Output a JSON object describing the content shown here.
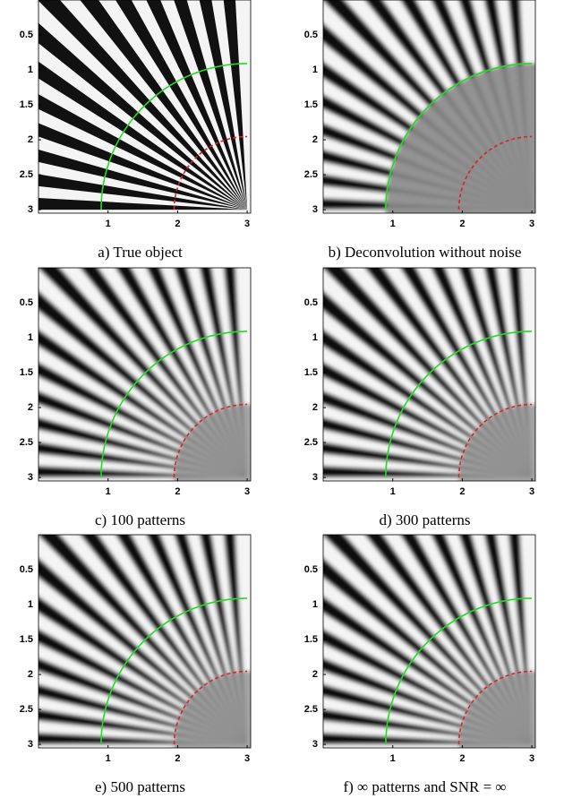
{
  "figure": {
    "xlim": [
      0,
      3.05
    ],
    "ylim": [
      0,
      3.05
    ],
    "xticks": [
      1,
      2,
      3
    ],
    "yticks": [
      0.5,
      1,
      1.5,
      2,
      2.5,
      3
    ],
    "arcs": [
      {
        "radius": 2.1,
        "color": "#22dd22",
        "dashed": false
      },
      {
        "radius": 1.05,
        "color": "#dd2222",
        "dashed": true
      }
    ],
    "panels": [
      {
        "caption": "a) True object"
      },
      {
        "caption": "b) Deconvolution without noise"
      },
      {
        "caption": "c) 100 patterns"
      },
      {
        "caption": "d) 300 patterns"
      },
      {
        "caption": "e) 500 patterns"
      },
      {
        "caption": "f) ∞ patterns and SNR = ∞"
      }
    ]
  }
}
